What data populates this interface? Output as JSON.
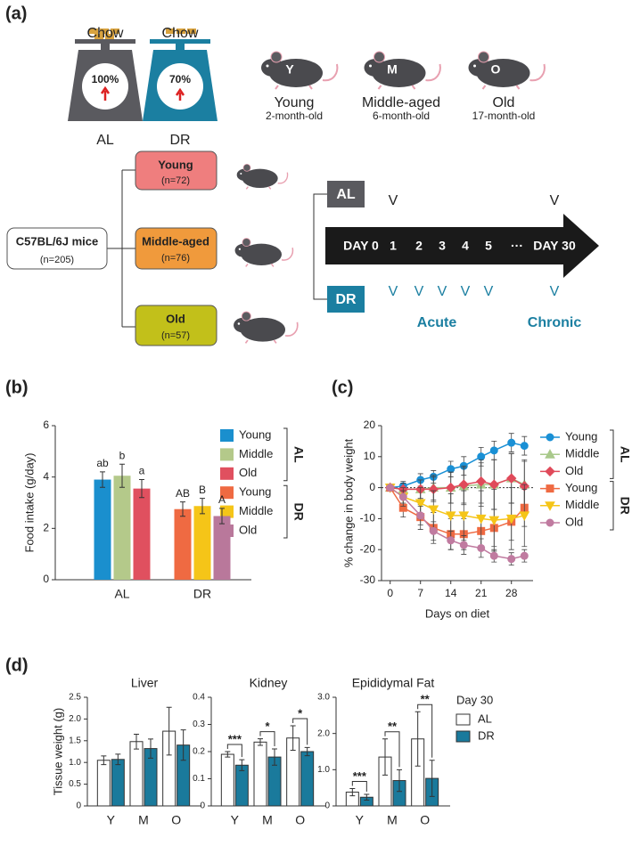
{
  "panel_labels": [
    "(a)",
    "(b)",
    "(c)",
    "(d)"
  ],
  "diagram": {
    "scales": [
      {
        "food": "Chow",
        "percent": "100%",
        "label": "AL"
      },
      {
        "food": "Chow",
        "percent": "70%",
        "label": "DR"
      }
    ],
    "mice": [
      {
        "letter": "Y",
        "label": "Young",
        "age": "2-month-old"
      },
      {
        "letter": "M",
        "label": "Middle-aged",
        "age": "6-month-old"
      },
      {
        "letter": "O",
        "label": "Old",
        "age": "17-month-old"
      }
    ],
    "source": {
      "label": "C57BL/6J mice",
      "n": "(n=205)"
    },
    "groups": [
      {
        "label": "Young",
        "n": "(n=72)"
      },
      {
        "label": "Middle-aged",
        "n": "(n=76)"
      },
      {
        "label": "Old",
        "n": "(n=57)"
      }
    ],
    "timeline": {
      "rows": [
        "AL",
        "DR"
      ],
      "days": [
        "DAY 0",
        "1",
        "2",
        "3",
        "4",
        "5",
        "···",
        "DAY 30"
      ],
      "al_marks": [
        null,
        "V",
        null,
        null,
        null,
        null,
        null,
        "V"
      ],
      "dr_marks": [
        null,
        "V",
        "V",
        "V",
        "V",
        "V",
        null,
        "V"
      ],
      "phases": [
        "Acute",
        "Chronic"
      ]
    }
  },
  "chart_data": [
    {
      "type": "bar",
      "ylabel": "Food intake (g/day)",
      "ylim": [
        0,
        6
      ],
      "yticks": [
        0,
        2,
        4,
        6
      ],
      "groups": [
        {
          "name": "AL",
          "series": [
            {
              "name": "Young",
              "color": "#1a8fce",
              "value": 3.9,
              "error": 0.3,
              "letter": "ab"
            },
            {
              "name": "Middle",
              "color": "#b4c98a",
              "value": 4.05,
              "error": 0.45,
              "letter": "b"
            },
            {
              "name": "Old",
              "color": "#e0505f",
              "value": 3.55,
              "error": 0.35,
              "letter": "a"
            }
          ]
        },
        {
          "name": "DR",
          "series": [
            {
              "name": "Young",
              "color": "#ef6a42",
              "value": 2.75,
              "error": 0.28,
              "letter": "AB"
            },
            {
              "name": "Middle",
              "color": "#f5c518",
              "value": 2.87,
              "error": 0.3,
              "letter": "B"
            },
            {
              "name": "Old",
              "color": "#b9789b",
              "value": 2.48,
              "error": 0.3,
              "letter": "A"
            }
          ]
        }
      ]
    },
    {
      "type": "line",
      "xlabel": "Days on diet",
      "ylabel": "% change in body weight",
      "x": [
        0,
        3,
        7,
        10,
        14,
        17,
        21,
        24,
        28,
        31
      ],
      "xlim": [
        -2,
        33
      ],
      "xticks": [
        0,
        7,
        14,
        21,
        28
      ],
      "ylim": [
        -30,
        20
      ],
      "yticks": [
        -30,
        -20,
        -10,
        0,
        10,
        20
      ],
      "groups": [
        {
          "name": "AL",
          "series": [
            {
              "name": "Young",
              "color": "#1a90d5",
              "marker": "circle",
              "values": [
                0,
                0.5,
                2.5,
                3.5,
                6,
                7,
                10,
                12,
                14.5,
                13.5
              ],
              "errors": [
                0.5,
                1.5,
                2,
                2,
                2.5,
                3,
                3,
                3,
                3,
                3
              ]
            },
            {
              "name": "Middle",
              "color": "#a9c98b",
              "marker": "triangle",
              "values": [
                0,
                -0.5,
                -0.5,
                0,
                0,
                0.5,
                1,
                1,
                3,
                1
              ],
              "errors": [
                0.5,
                2,
                3,
                4,
                5,
                6,
                7,
                8,
                8,
                8
              ]
            },
            {
              "name": "Old",
              "color": "#e04a5a",
              "marker": "diamond",
              "values": [
                0,
                -0.5,
                -0.5,
                -0.5,
                0,
                1,
                2,
                1,
                3,
                0.5
              ],
              "errors": [
                0.5,
                2,
                3,
                4,
                5,
                6,
                7,
                8,
                8,
                8
              ]
            }
          ]
        },
        {
          "name": "DR",
          "series": [
            {
              "name": "Young",
              "color": "#ef6a42",
              "marker": "square",
              "values": [
                0,
                -6.5,
                -9.5,
                -13,
                -15,
                -15,
                -14,
                -13,
                -11,
                -6.5
              ],
              "errors": [
                0.5,
                3,
                4,
                5,
                5,
                5,
                5,
                6,
                6,
                6
              ]
            },
            {
              "name": "Middle",
              "color": "#f5c518",
              "marker": "triangle-down",
              "values": [
                0,
                -3,
                -5,
                -7,
                -9,
                -9,
                -10,
                -10.5,
                -10,
                -9
              ],
              "errors": [
                0.5,
                3,
                5,
                6,
                7,
                8,
                9,
                10,
                10,
                10
              ]
            },
            {
              "name": "Old",
              "color": "#c07ba0",
              "marker": "circle",
              "values": [
                0,
                -3,
                -9,
                -14,
                -17,
                -18.5,
                -19.5,
                -22,
                -23,
                -22
              ],
              "errors": [
                0.5,
                2,
                3,
                3,
                3,
                3,
                3,
                2,
                2,
                2
              ]
            }
          ]
        }
      ]
    },
    {
      "type": "bar",
      "title": "Liver",
      "ylabel": "Tissue weight (g)",
      "categories": [
        "Y",
        "M",
        "O"
      ],
      "ylim": [
        0,
        2.5
      ],
      "yticks": [
        0,
        0.5,
        {
          "value": 1,
          "label": "1.0"
        },
        1.5,
        {
          "value": 2,
          "label": "2.0"
        },
        2.5
      ],
      "series": [
        {
          "color": "#ffffff",
          "values": [
            1.05,
            1.48,
            1.72
          ],
          "errors": [
            0.1,
            0.17,
            0.55
          ]
        },
        {
          "color": "#1a7a9c",
          "values": [
            1.07,
            1.32,
            1.4
          ],
          "errors": [
            0.12,
            0.22,
            0.35
          ]
        }
      ]
    },
    {
      "type": "bar",
      "title": "Kidney",
      "categories": [
        "Y",
        "M",
        "O"
      ],
      "ylim": [
        0,
        0.4
      ],
      "yticks": [
        0,
        0.1,
        0.2,
        0.3,
        0.4
      ],
      "significance": [
        "***",
        "*",
        "*"
      ],
      "series": [
        {
          "color": "#ffffff",
          "values": [
            0.19,
            0.235,
            0.25
          ],
          "errors": [
            0.01,
            0.012,
            0.045
          ]
        },
        {
          "color": "#1a7a9c",
          "values": [
            0.15,
            0.18,
            0.2
          ],
          "errors": [
            0.02,
            0.03,
            0.015
          ]
        }
      ]
    },
    {
      "type": "bar",
      "title": "Epididymal Fat",
      "categories": [
        "Y",
        "M",
        "O"
      ],
      "ylim": [
        0,
        3
      ],
      "yticks": [
        0,
        {
          "value": 1,
          "label": "1.0"
        },
        {
          "value": 2,
          "label": "2.0"
        },
        {
          "value": 3,
          "label": "3.0"
        }
      ],
      "significance": [
        "***",
        "**",
        "**"
      ],
      "legend_title": "Day 30",
      "series": [
        {
          "name": "AL",
          "color": "#ffffff",
          "values": [
            0.38,
            1.35,
            1.85
          ],
          "errors": [
            0.1,
            0.5,
            0.75
          ]
        },
        {
          "name": "DR",
          "color": "#1a7a9c",
          "values": [
            0.24,
            0.7,
            0.76
          ],
          "errors": [
            0.08,
            0.3,
            0.5
          ]
        }
      ]
    }
  ]
}
